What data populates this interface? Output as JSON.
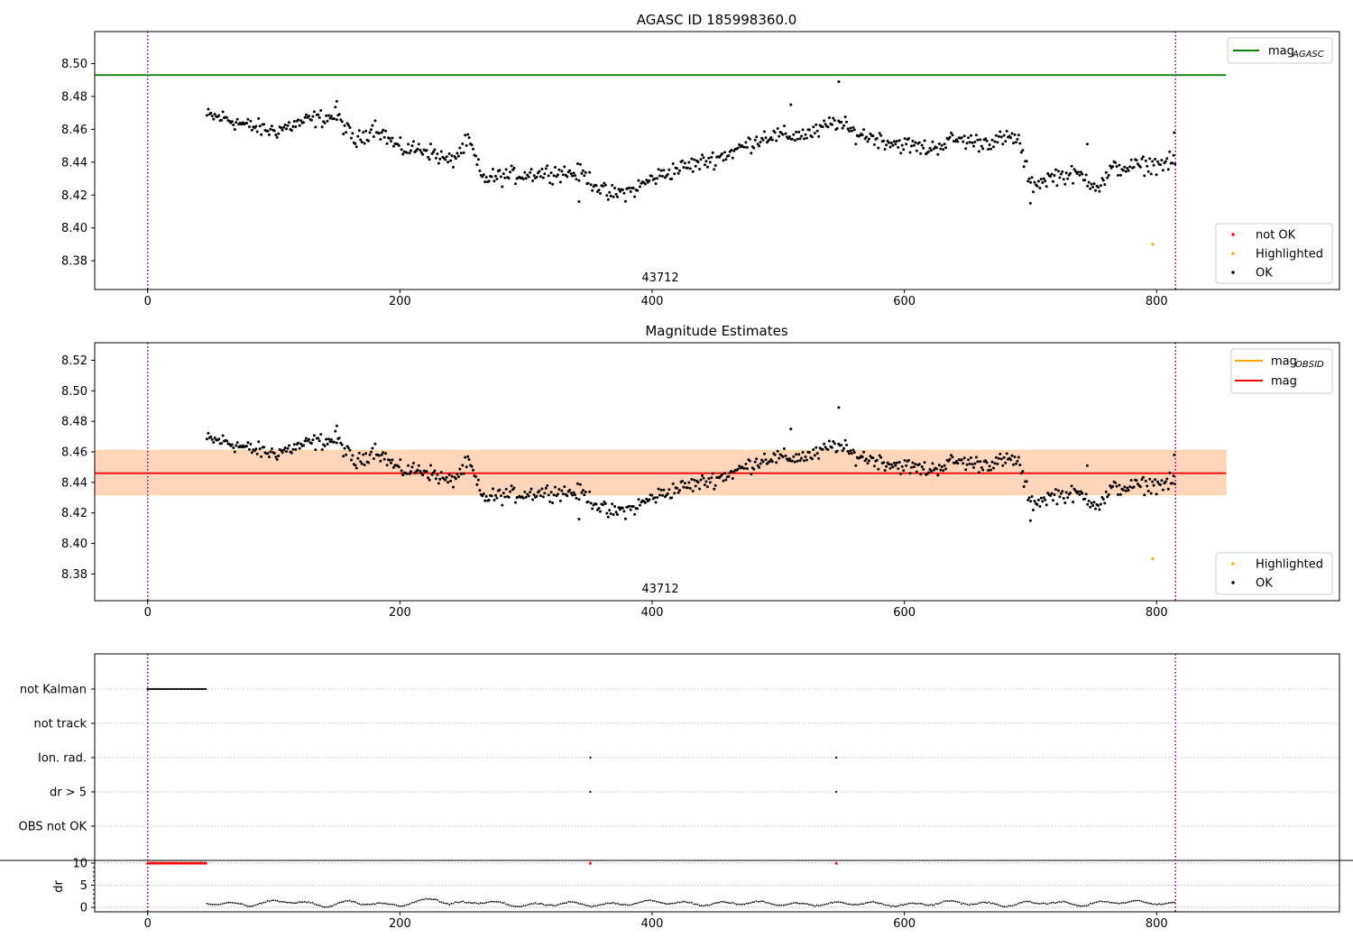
{
  "chart_data": [
    {
      "type": "scatter",
      "title": "AGASC ID 185998360.0",
      "annotation": "43712",
      "xlim": [
        -42,
        945
      ],
      "ylim": [
        8.3625,
        8.5195
      ],
      "x_ticks": [
        0,
        200,
        400,
        600,
        800
      ],
      "y_ticks": [
        8.38,
        8.4,
        8.42,
        8.44,
        8.46,
        8.48,
        8.5
      ],
      "vlines": [
        0,
        815
      ],
      "hline": {
        "name": "mag_AGASC",
        "value": 8.493,
        "x": [
          -42,
          855
        ],
        "color": "#008000"
      },
      "series": [
        {
          "name": "not OK",
          "color": "#ff0000"
        },
        {
          "name": "Highlighted",
          "color": "#ffa500",
          "points": [
            [
              797,
              8.39
            ]
          ]
        },
        {
          "name": "OK",
          "color": "#000000"
        }
      ],
      "ok_trend": [
        [
          47,
          8.468
        ],
        [
          60,
          8.467
        ],
        [
          80,
          8.462
        ],
        [
          100,
          8.459
        ],
        [
          130,
          8.466
        ],
        [
          150,
          8.468
        ],
        [
          165,
          8.452
        ],
        [
          180,
          8.462
        ],
        [
          200,
          8.448
        ],
        [
          220,
          8.448
        ],
        [
          240,
          8.44
        ],
        [
          255,
          8.453
        ],
        [
          265,
          8.43
        ],
        [
          290,
          8.432
        ],
        [
          320,
          8.434
        ],
        [
          345,
          8.433
        ],
        [
          365,
          8.42
        ],
        [
          385,
          8.423
        ],
        [
          400,
          8.43
        ],
        [
          420,
          8.436
        ],
        [
          440,
          8.44
        ],
        [
          460,
          8.445
        ],
        [
          490,
          8.456
        ],
        [
          510,
          8.456
        ],
        [
          530,
          8.458
        ],
        [
          545,
          8.465
        ],
        [
          560,
          8.458
        ],
        [
          590,
          8.452
        ],
        [
          620,
          8.448
        ],
        [
          640,
          8.454
        ],
        [
          660,
          8.452
        ],
        [
          690,
          8.455
        ],
        [
          700,
          8.426
        ],
        [
          720,
          8.432
        ],
        [
          740,
          8.432
        ],
        [
          755,
          8.425
        ],
        [
          765,
          8.436
        ],
        [
          790,
          8.438
        ],
        [
          815,
          8.44
        ]
      ],
      "ok_outliers": [
        [
          548,
          8.489
        ],
        [
          510,
          8.475
        ],
        [
          150,
          8.477
        ],
        [
          342,
          8.416
        ],
        [
          700,
          8.415
        ],
        [
          814,
          8.458
        ],
        [
          745,
          8.451
        ]
      ],
      "legend_position": "top-right / lower-right"
    },
    {
      "type": "scatter",
      "title": "Magnitude Estimates",
      "annotation": "43712",
      "xlim": [
        -42,
        945
      ],
      "ylim": [
        8.3625,
        8.5315
      ],
      "x_ticks": [
        0,
        200,
        400,
        600,
        800
      ],
      "y_ticks": [
        8.38,
        8.4,
        8.42,
        8.44,
        8.46,
        8.48,
        8.5,
        8.52
      ],
      "vlines": [
        0,
        815
      ],
      "mag_line": {
        "name": "mag",
        "value": 8.446,
        "x": [
          -42,
          855
        ],
        "color": "#ff0000",
        "band": [
          8.432,
          8.461
        ]
      },
      "mag_obsid_line": {
        "name": "mag_OBSID",
        "value": 8.446,
        "x": [
          47,
          815
        ],
        "color": "#ffa500",
        "band": [
          8.432,
          8.461
        ]
      },
      "series": [
        {
          "name": "Highlighted",
          "color": "#ffa500",
          "points": [
            [
              797,
              8.39
            ]
          ]
        },
        {
          "name": "OK",
          "color": "#000000"
        }
      ],
      "legend_position": "top-right / lower-right"
    },
    {
      "type": "scatter",
      "title": "",
      "xlim": [
        -42,
        945
      ],
      "x_ticks": [
        0,
        200,
        400,
        600,
        800
      ],
      "vlines": [
        0,
        815
      ],
      "flag_categories": [
        "not Kalman",
        "not track",
        "Ion. rad.",
        "dr > 5",
        "OBS not OK"
      ],
      "flags": {
        "not Kalman": {
          "x_range": [
            0,
            47
          ]
        },
        "not track": {
          "x_points": []
        },
        "Ion. rad.": {
          "x_points": [
            351,
            546
          ]
        },
        "dr > 5": {
          "x_points": [
            351,
            546
          ]
        },
        "OBS not OK": {
          "x_points": []
        }
      },
      "dr": {
        "ylabel": "dr",
        "y_ticks": [
          0,
          5,
          10
        ],
        "ylim": [
          -1,
          10.6
        ],
        "clipped_value": 10,
        "clipped_ranges": [
          [
            0,
            47
          ]
        ],
        "clipped_points": [
          351,
          546
        ],
        "baseline": [
          [
            47,
            1.0
          ],
          [
            80,
            0.6
          ],
          [
            110,
            1.5
          ],
          [
            140,
            0.3
          ],
          [
            160,
            1.2
          ],
          [
            190,
            0.5
          ],
          [
            210,
            0.9
          ],
          [
            228,
            2.1
          ],
          [
            240,
            0.6
          ],
          [
            260,
            1.3
          ],
          [
            300,
            0.4
          ],
          [
            330,
            0.9
          ],
          [
            360,
            0.5
          ],
          [
            400,
            1.3
          ],
          [
            440,
            0.7
          ],
          [
            480,
            1.1
          ],
          [
            520,
            0.6
          ],
          [
            560,
            1.0
          ],
          [
            600,
            0.5
          ],
          [
            640,
            1.2
          ],
          [
            680,
            0.5
          ],
          [
            710,
            1.2
          ],
          [
            740,
            0.6
          ],
          [
            770,
            1.3
          ],
          [
            815,
            0.8
          ]
        ]
      }
    }
  ],
  "legends": {
    "top_lines": [
      {
        "label": "mag",
        "subscript": "AGASC",
        "color": "#008000"
      }
    ],
    "top_points": [
      {
        "label": "not OK",
        "color": "#ff0000"
      },
      {
        "label": "Highlighted",
        "color": "#ffa500"
      },
      {
        "label": "OK",
        "color": "#000000"
      }
    ],
    "mid_lines": [
      {
        "label": "mag",
        "subscript": "OBSID",
        "color": "#ffa500"
      },
      {
        "label": "mag",
        "subscript": "",
        "color": "#ff0000"
      }
    ],
    "mid_points": [
      {
        "label": "Highlighted",
        "color": "#ffa500"
      },
      {
        "label": "OK",
        "color": "#000000"
      }
    ]
  },
  "colors": {
    "vline": "#800080",
    "band_obsid": "#ffa500",
    "band_mag": "#ff69b4",
    "flag_point": "#000000",
    "clipped_marker": "#ff0000"
  }
}
